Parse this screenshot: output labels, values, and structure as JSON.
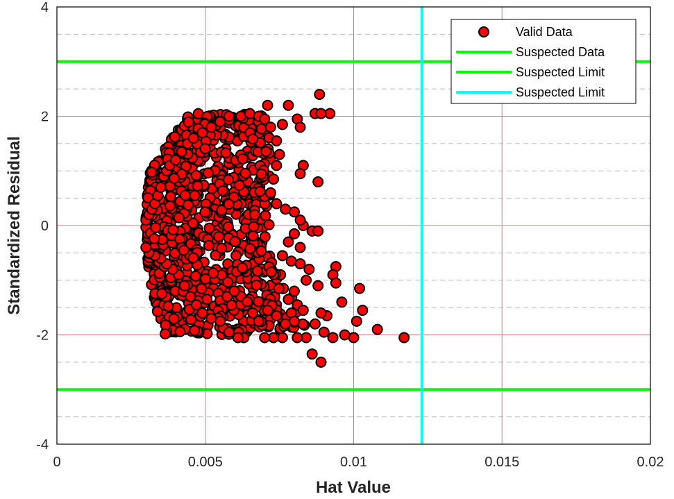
{
  "chart_data": {
    "type": "scatter",
    "xlabel": "Hat Value",
    "ylabel": "Standardized Residual",
    "xlim": [
      0,
      0.02
    ],
    "ylim": [
      -4,
      4
    ],
    "x_ticks": [
      "0",
      "0.005",
      "0.01",
      "0.015",
      "0.02"
    ],
    "y_ticks": [
      "-4",
      "-2",
      "0",
      "2",
      "4"
    ],
    "x_tick_values": [
      0,
      0.005,
      0.01,
      0.015,
      0.02
    ],
    "y_tick_values": [
      -4,
      -2,
      0,
      2,
      4
    ],
    "grid": "on (major: solid red, minor y: dashed gray)",
    "legend_position": "top-right",
    "legend": [
      {
        "label": "Valid Data",
        "marker": "circle",
        "color": "#ff0000",
        "edge": "#000000"
      },
      {
        "label": "Suspected Data",
        "marker": "line",
        "color": "#00ff00"
      },
      {
        "label": "Suspected Limit",
        "marker": "line",
        "color": "#00ff00"
      },
      {
        "label": "Suspected Limit",
        "marker": "line",
        "color": "#00ffff"
      }
    ],
    "reference_lines": [
      {
        "orientation": "horizontal",
        "value": 3,
        "color": "#00ff00"
      },
      {
        "orientation": "horizontal",
        "value": -3,
        "color": "#00ff00"
      },
      {
        "orientation": "vertical",
        "value": 0.0123,
        "color": "#00ffff"
      }
    ],
    "series": [
      {
        "name": "Valid Data",
        "color": "#ff0000",
        "points": [
          [
            0.00885,
            2.4
          ],
          [
            0.0071,
            2.2
          ],
          [
            0.0078,
            2.2
          ],
          [
            0.0087,
            2.05
          ],
          [
            0.0092,
            2.05
          ],
          [
            0.0089,
            2.05
          ],
          [
            0.0081,
            1.95
          ],
          [
            0.0082,
            1.8
          ],
          [
            0.0076,
            1.85
          ],
          [
            0.0083,
            1.1
          ],
          [
            0.0082,
            0.95
          ],
          [
            0.0088,
            0.8
          ],
          [
            0.0083,
            0.0
          ],
          [
            0.0086,
            -0.1
          ],
          [
            0.0088,
            -0.1
          ],
          [
            0.0082,
            -0.4
          ],
          [
            0.0085,
            -0.8
          ],
          [
            0.0094,
            -0.75
          ],
          [
            0.0093,
            -0.9
          ],
          [
            0.0088,
            -1.1
          ],
          [
            0.0094,
            -1.05
          ],
          [
            0.0096,
            -1.4
          ],
          [
            0.0102,
            -1.15
          ],
          [
            0.0103,
            -1.55
          ],
          [
            0.0101,
            -1.75
          ],
          [
            0.0108,
            -1.9
          ],
          [
            0.0117,
            -2.05
          ],
          [
            0.01,
            -2.05
          ],
          [
            0.0097,
            -2.0
          ],
          [
            0.0093,
            -2.05
          ],
          [
            0.0089,
            -2.5
          ],
          [
            0.0086,
            -2.35
          ],
          [
            0.009,
            -1.95
          ],
          [
            0.0091,
            -1.65
          ],
          [
            0.0089,
            -1.6
          ],
          [
            0.0087,
            -1.8
          ],
          [
            0.0084,
            -2.05
          ],
          [
            0.0081,
            -2.05
          ],
          [
            0.0079,
            -1.6
          ],
          [
            0.0076,
            -2.05
          ],
          [
            0.0073,
            -2.05
          ],
          [
            0.007,
            -2.05
          ],
          [
            0.0063,
            -2.05
          ],
          [
            0.0061,
            -2.05
          ],
          [
            0.0058,
            -1.95
          ],
          [
            0.0055,
            -1.75
          ],
          [
            0.0052,
            -1.7
          ],
          [
            0.0049,
            -1.6
          ],
          [
            0.0047,
            -1.45
          ],
          [
            0.0045,
            -1.3
          ],
          [
            0.0043,
            -1.1
          ],
          [
            0.0041,
            -0.9
          ],
          [
            0.0039,
            -0.8
          ],
          [
            0.0037,
            -0.7
          ],
          [
            0.0035,
            -0.6
          ],
          [
            0.0033,
            -0.55
          ],
          [
            0.0031,
            -0.5
          ],
          [
            0.003,
            -0.4
          ],
          [
            0.003,
            0.1
          ],
          [
            0.0031,
            0.2
          ],
          [
            0.0032,
            0.3
          ],
          [
            0.0033,
            0.4
          ],
          [
            0.0034,
            0.55
          ],
          [
            0.0035,
            0.7
          ],
          [
            0.0036,
            0.9
          ],
          [
            0.0037,
            1.0
          ],
          [
            0.0038,
            1.1
          ],
          [
            0.004,
            1.2
          ],
          [
            0.0042,
            1.35
          ],
          [
            0.0044,
            1.5
          ],
          [
            0.0046,
            1.6
          ],
          [
            0.0049,
            1.7
          ],
          [
            0.0052,
            1.8
          ],
          [
            0.0055,
            1.9
          ],
          [
            0.0058,
            2.0
          ],
          [
            0.0062,
            2.0
          ],
          [
            0.0065,
            2.05
          ],
          [
            0.0068,
            2.0
          ],
          [
            0.007,
            1.95
          ],
          [
            0.0072,
            1.8
          ],
          [
            0.0074,
            1.55
          ],
          [
            0.0075,
            1.3
          ],
          [
            0.0074,
            1.1
          ],
          [
            0.0073,
            0.85
          ],
          [
            0.0072,
            0.6
          ],
          [
            0.0074,
            0.4
          ],
          [
            0.0077,
            0.3
          ],
          [
            0.008,
            0.25
          ],
          [
            0.0082,
            0.1
          ],
          [
            0.008,
            -0.15
          ],
          [
            0.0078,
            -0.3
          ],
          [
            0.0076,
            -0.55
          ],
          [
            0.0079,
            -0.65
          ],
          [
            0.0082,
            -0.7
          ],
          [
            0.0084,
            -1.0
          ],
          [
            0.008,
            -1.2
          ],
          [
            0.0078,
            -1.35
          ],
          [
            0.0081,
            -1.45
          ],
          [
            0.0083,
            -1.55
          ],
          [
            0.008,
            -1.75
          ],
          [
            0.0077,
            -1.8
          ],
          [
            0.0074,
            -1.65
          ],
          [
            0.0071,
            -1.55
          ],
          [
            0.0068,
            -1.75
          ],
          [
            0.0066,
            -1.6
          ]
        ]
      }
    ]
  }
}
